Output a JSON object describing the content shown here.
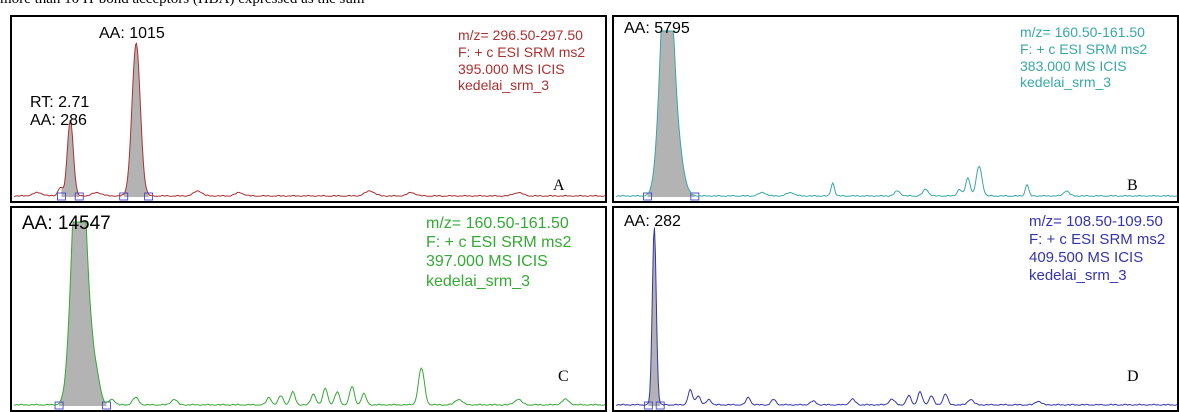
{
  "top_text": "more than 10 H-bond acceptors (HBA) expressed as the sum",
  "panels": [
    {
      "letter": "A",
      "color": "#a83232",
      "peak_label": "AA: 1015",
      "secondary_label": [
        "RT: 2.71",
        "AA: 286"
      ],
      "info": [
        "m/z= 296.50-297.50",
        "F: + c ESI SRM ms2",
        "395.000  MS  ICIS",
        "kedelai_srm_3"
      ]
    },
    {
      "letter": "B",
      "color": "#3aa7a7",
      "peak_label": "AA: 5795",
      "info": [
        "m/z= 160.50-161.50",
        "F: + c ESI SRM ms2",
        "383.000  MS  ICIS",
        "kedelai_srm_3"
      ]
    },
    {
      "letter": "C",
      "color": "#36a836",
      "peak_label": "AA: 14547",
      "info": [
        "m/z= 160.50-161.50",
        "F: + c ESI SRM ms2",
        "397.000  MS  ICIS",
        "kedelai_srm_3"
      ]
    },
    {
      "letter": "D",
      "color": "#3535a8",
      "peak_label": "AA: 282",
      "info": [
        "m/z= 108.50-109.50",
        "F: + c ESI SRM ms2",
        "409.500  MS  ICIS",
        "kedelai_srm_3"
      ]
    }
  ],
  "chart_data": [
    {
      "type": "line",
      "panel": "A",
      "x_domain": [
        0,
        100
      ],
      "ylim": [
        0,
        100
      ],
      "peaks": [
        {
          "x": 9.5,
          "y": 46,
          "w": 0.5,
          "shaded": true
        },
        {
          "x": 20.6,
          "y": 92,
          "w": 0.7,
          "shaded": true
        },
        {
          "x": 7.8,
          "y": 5,
          "w": 0.4
        },
        {
          "x": 4.0,
          "y": 2,
          "w": 0.8
        },
        {
          "x": 14.0,
          "y": 2,
          "w": 0.8
        },
        {
          "x": 31.0,
          "y": 3,
          "w": 0.7
        },
        {
          "x": 38.0,
          "y": 2,
          "w": 0.7
        },
        {
          "x": 60.0,
          "y": 3,
          "w": 0.8
        },
        {
          "x": 67.0,
          "y": 2,
          "w": 0.7
        },
        {
          "x": 85.0,
          "y": 2,
          "w": 0.8
        }
      ]
    },
    {
      "type": "line",
      "panel": "B",
      "x_domain": [
        0,
        100
      ],
      "ylim": [
        0,
        100
      ],
      "peaks": [
        {
          "x": 8.6,
          "y": 95,
          "w": 1.0,
          "shaded": true
        },
        {
          "x": 9.5,
          "y": 78,
          "w": 0.9,
          "shaded": true
        },
        {
          "x": 11.0,
          "y": 25,
          "w": 1.0,
          "shaded": true
        },
        {
          "x": 38.5,
          "y": 8,
          "w": 0.3
        },
        {
          "x": 50.0,
          "y": 3,
          "w": 0.5
        },
        {
          "x": 55.0,
          "y": 4,
          "w": 0.5
        },
        {
          "x": 62.5,
          "y": 11,
          "w": 0.4
        },
        {
          "x": 64.5,
          "y": 18,
          "w": 0.5
        },
        {
          "x": 61.0,
          "y": 4,
          "w": 0.4
        },
        {
          "x": 73.0,
          "y": 7,
          "w": 0.3
        },
        {
          "x": 80.0,
          "y": 3,
          "w": 0.5
        },
        {
          "x": 26.0,
          "y": 2,
          "w": 0.7
        },
        {
          "x": 31.0,
          "y": 2,
          "w": 0.7
        }
      ]
    },
    {
      "type": "line",
      "panel": "C",
      "x_domain": [
        0,
        100
      ],
      "ylim": [
        0,
        100
      ],
      "peaks": [
        {
          "x": 10.3,
          "y": 88,
          "w": 0.9,
          "shaded": true
        },
        {
          "x": 11.3,
          "y": 94,
          "w": 0.8,
          "shaded": true
        },
        {
          "x": 12.6,
          "y": 40,
          "w": 1.0,
          "shaded": true
        },
        {
          "x": 14.2,
          "y": 5,
          "w": 0.5
        },
        {
          "x": 16.5,
          "y": 3,
          "w": 0.5
        },
        {
          "x": 20.5,
          "y": 4,
          "w": 0.5
        },
        {
          "x": 27.0,
          "y": 3,
          "w": 0.5
        },
        {
          "x": 43.0,
          "y": 4,
          "w": 0.4
        },
        {
          "x": 45.0,
          "y": 5,
          "w": 0.4
        },
        {
          "x": 47.0,
          "y": 7,
          "w": 0.4
        },
        {
          "x": 50.5,
          "y": 6,
          "w": 0.4
        },
        {
          "x": 52.5,
          "y": 9,
          "w": 0.4
        },
        {
          "x": 54.5,
          "y": 7,
          "w": 0.4
        },
        {
          "x": 57.0,
          "y": 10,
          "w": 0.4
        },
        {
          "x": 59.0,
          "y": 6,
          "w": 0.4
        },
        {
          "x": 68.7,
          "y": 20,
          "w": 0.5
        },
        {
          "x": 75.0,
          "y": 3,
          "w": 0.6
        },
        {
          "x": 85.0,
          "y": 3,
          "w": 0.6
        },
        {
          "x": 93.0,
          "y": 3,
          "w": 0.6
        }
      ]
    },
    {
      "type": "line",
      "panel": "D",
      "x_domain": [
        0,
        100
      ],
      "ylim": [
        0,
        100
      ],
      "peaks": [
        {
          "x": 6.8,
          "y": 97,
          "w": 0.35,
          "shaded": true
        },
        {
          "x": 13.2,
          "y": 8,
          "w": 0.4
        },
        {
          "x": 14.6,
          "y": 5,
          "w": 0.4
        },
        {
          "x": 16.5,
          "y": 3,
          "w": 0.4
        },
        {
          "x": 23.5,
          "y": 4,
          "w": 0.4
        },
        {
          "x": 28.0,
          "y": 3,
          "w": 0.4
        },
        {
          "x": 35.0,
          "y": 2,
          "w": 0.5
        },
        {
          "x": 42.0,
          "y": 3,
          "w": 0.5
        },
        {
          "x": 49.0,
          "y": 3,
          "w": 0.5
        },
        {
          "x": 52.0,
          "y": 5,
          "w": 0.4
        },
        {
          "x": 54.0,
          "y": 7,
          "w": 0.4
        },
        {
          "x": 56.0,
          "y": 5,
          "w": 0.4
        },
        {
          "x": 58.5,
          "y": 6,
          "w": 0.4
        },
        {
          "x": 63.0,
          "y": 3,
          "w": 0.5
        },
        {
          "x": 75.0,
          "y": 2,
          "w": 0.5
        }
      ]
    }
  ]
}
